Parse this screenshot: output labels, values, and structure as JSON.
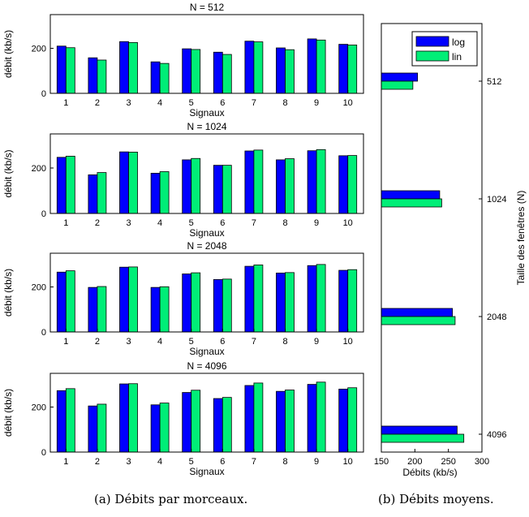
{
  "colors": {
    "log": "#0000ff",
    "lin": "#00ee77"
  },
  "captions": {
    "a": "(a) Débits par morceaux.",
    "b": "(b) Débits moyens."
  },
  "chart_data": [
    {
      "type": "bar",
      "title": "N = 512",
      "xlabel": "Signaux",
      "ylabel": "débit (kb/s)",
      "categories": [
        "1",
        "2",
        "3",
        "4",
        "5",
        "6",
        "7",
        "8",
        "9",
        "10"
      ],
      "ylim": [
        0,
        350
      ],
      "yticks": [
        0,
        200
      ],
      "series": [
        {
          "values": [
            210,
            158,
            230,
            140,
            198,
            183,
            232,
            202,
            242,
            218
          ]
        },
        {
          "values": [
            203,
            148,
            226,
            133,
            195,
            173,
            229,
            194,
            237,
            215
          ]
        }
      ]
    },
    {
      "type": "bar",
      "title": "N = 1024",
      "xlabel": "Signaux",
      "ylabel": "débit (kb/s)",
      "categories": [
        "1",
        "2",
        "3",
        "4",
        "5",
        "6",
        "7",
        "8",
        "9",
        "10"
      ],
      "ylim": [
        0,
        350
      ],
      "yticks": [
        0,
        200
      ],
      "series": [
        {
          "values": [
            247,
            170,
            271,
            177,
            236,
            212,
            275,
            236,
            276,
            254
          ]
        },
        {
          "values": [
            252,
            180,
            270,
            184,
            242,
            212,
            279,
            241,
            281,
            255
          ]
        }
      ]
    },
    {
      "type": "bar",
      "title": "N = 2048",
      "xlabel": "Signaux",
      "ylabel": "débit (kb/s)",
      "categories": [
        "1",
        "2",
        "3",
        "4",
        "5",
        "6",
        "7",
        "8",
        "9",
        "10"
      ],
      "ylim": [
        0,
        350
      ],
      "yticks": [
        0,
        200
      ],
      "series": [
        {
          "values": [
            266,
            198,
            288,
            198,
            258,
            233,
            292,
            262,
            295,
            274
          ]
        },
        {
          "values": [
            272,
            202,
            289,
            201,
            263,
            235,
            298,
            264,
            300,
            277
          ]
        }
      ]
    },
    {
      "type": "bar",
      "title": "N = 4096",
      "xlabel": "Signaux",
      "ylabel": "débit (kb/s)",
      "categories": [
        "1",
        "2",
        "3",
        "4",
        "5",
        "6",
        "7",
        "8",
        "9",
        "10"
      ],
      "ylim": [
        0,
        350
      ],
      "yticks": [
        0,
        200
      ],
      "series": [
        {
          "values": [
            273,
            205,
            303,
            210,
            265,
            238,
            296,
            270,
            301,
            280
          ]
        },
        {
          "values": [
            282,
            213,
            304,
            218,
            275,
            243,
            307,
            276,
            311,
            286
          ]
        }
      ]
    },
    {
      "type": "bar",
      "orientation": "horizontal",
      "xlabel": "Débits (kb/s)",
      "ylabel": "Taille des fenêtres (N)",
      "categories": [
        "512",
        "1024",
        "2048",
        "4096"
      ],
      "xlim": [
        150,
        300
      ],
      "xticks": [
        150,
        200,
        250,
        300
      ],
      "legend_position": "top-right",
      "series": [
        {
          "name": "log",
          "values": [
            204,
            237,
            256,
            263
          ]
        },
        {
          "name": "lin",
          "values": [
            197,
            240,
            260,
            273
          ]
        }
      ]
    }
  ]
}
